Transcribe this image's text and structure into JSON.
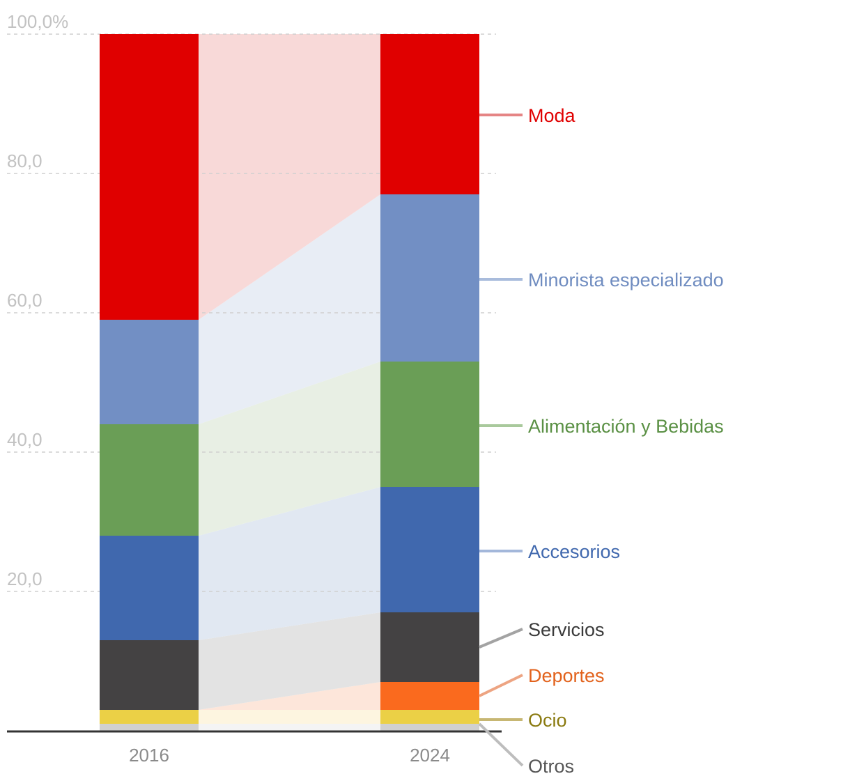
{
  "chart_data": {
    "type": "stacked-bar",
    "title": "",
    "xlabel": "",
    "ylabel": "",
    "ylim": [
      0,
      100
    ],
    "y_ticks": [
      {
        "value": 100,
        "label": "100,0%"
      },
      {
        "value": 80,
        "label": "80,0"
      },
      {
        "value": 60,
        "label": "60,0"
      },
      {
        "value": 40,
        "label": "40,0"
      },
      {
        "value": 20,
        "label": "20,0"
      }
    ],
    "categories": [
      "2016",
      "2024"
    ],
    "series": [
      {
        "name": "Otros",
        "values": [
          1,
          1
        ],
        "color": "#d0d0d0",
        "label_color": "#555555",
        "line_color": "#bdbdbd",
        "band_color": "#f4f4f4"
      },
      {
        "name": "Ocio",
        "values": [
          2,
          2
        ],
        "color": "#ebd046",
        "label_color": "#8a7a10",
        "line_color": "#c7b773",
        "band_color": "#fdf5e0"
      },
      {
        "name": "Deportes",
        "values": [
          0,
          4
        ],
        "color": "#fa6a1e",
        "label_color": "#e2621c",
        "line_color": "#eda482",
        "band_color": "#fde6da"
      },
      {
        "name": "Servicios",
        "values": [
          10,
          10
        ],
        "color": "#444243",
        "label_color": "#3a3a3a",
        "line_color": "#a3a3a3",
        "band_color": "#e3e3e3"
      },
      {
        "name": "Accesorios",
        "values": [
          15,
          18
        ],
        "color": "#4068ae",
        "label_color": "#4068ae",
        "line_color": "#a3b7da",
        "band_color": "#e1e8f2"
      },
      {
        "name": "Alimentación y Bebidas",
        "values": [
          16,
          18
        ],
        "color": "#6a9e56",
        "label_color": "#5a9044",
        "line_color": "#a9c99c",
        "band_color": "#e8efe4"
      },
      {
        "name": "Minorista especializado",
        "values": [
          15,
          24
        ],
        "color": "#728fc4",
        "label_color": "#6f8cc0",
        "line_color": "#a9bcdc",
        "band_color": "#e8edf5"
      },
      {
        "name": "Moda",
        "values": [
          41,
          23
        ],
        "color": "#e00000",
        "label_color": "#e00000",
        "line_color": "#e58585",
        "band_color": "#f8d9d8"
      }
    ]
  }
}
